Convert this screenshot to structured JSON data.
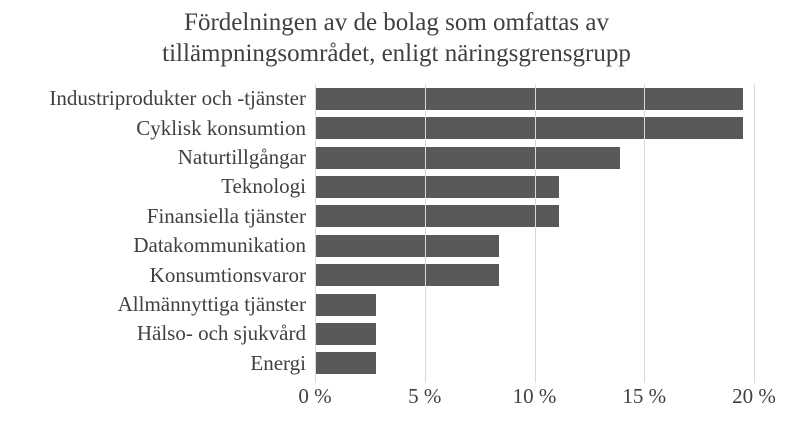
{
  "title": {
    "line1": "Fördelningen av de bolag som omfattas av",
    "line2": "tillämpningsområdet, enligt näringsgrensgrupp"
  },
  "chart_data": {
    "type": "bar",
    "orientation": "horizontal",
    "title": "Fördelningen av de bolag som omfattas av tillämpningsområdet, enligt näringsgrensgrupp",
    "categories": [
      "Industriprodukter och -tjänster",
      "Cyklisk konsumtion",
      "Naturtillgångar",
      "Teknologi",
      "Finansiella tjänster",
      "Datakommunikation",
      "Konsumtionsvaror",
      "Allmännyttiga tjänster",
      "Hälso- och sjukvård",
      "Energi"
    ],
    "values": [
      19.5,
      19.5,
      13.9,
      11.1,
      11.1,
      8.4,
      8.4,
      2.8,
      2.8,
      2.8
    ],
    "unit": "%",
    "xlabel": "",
    "ylabel": "",
    "xlim": [
      0,
      20
    ],
    "x_ticks": [
      {
        "value": 0,
        "label": "0 %"
      },
      {
        "value": 5,
        "label": "5 %"
      },
      {
        "value": 10,
        "label": "10 %"
      },
      {
        "value": 15,
        "label": "15 %"
      },
      {
        "value": 20,
        "label": "20 %"
      }
    ],
    "grid": "vertical",
    "legend": "none",
    "colors": {
      "bar": "#595959",
      "gridline": "#d9d9d9",
      "text": "#404040",
      "background": "#ffffff"
    }
  }
}
